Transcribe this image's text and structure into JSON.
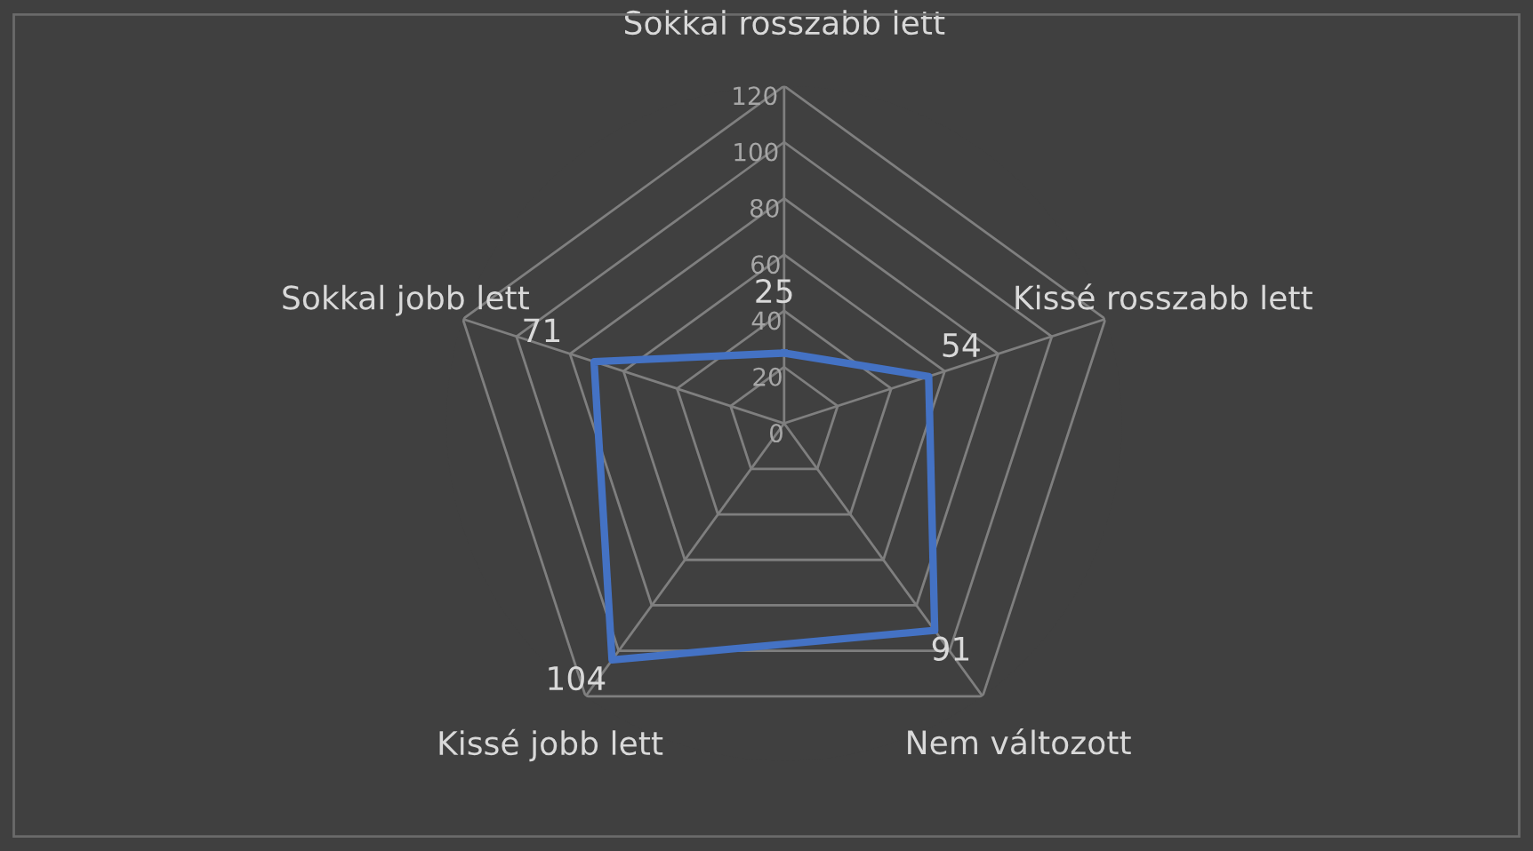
{
  "chart_data": {
    "type": "radar",
    "categories": [
      "Sokkal rosszabb lett",
      "Kissé rosszabb lett",
      "Nem változott",
      "Kissé jobb lett",
      "Sokkal jobb lett"
    ],
    "series": [
      {
        "color": "#4472c4",
        "values": [
          25,
          54,
          91,
          104,
          71
        ]
      }
    ],
    "ylim": [
      0,
      120
    ],
    "yticks": [
      0,
      20,
      40,
      60,
      80,
      100,
      120
    ],
    "data_labels": true,
    "grid": true,
    "marker": "none",
    "line_style": "solid"
  }
}
